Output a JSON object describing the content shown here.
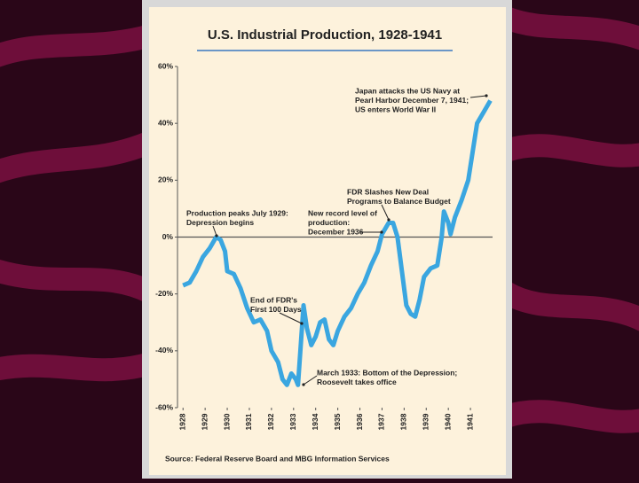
{
  "chart_data": {
    "type": "line",
    "title": "U.S. Industrial Production, 1928-1941",
    "source": "Source: Federal Reserve Board and MBG Information Services",
    "x": [
      1928.0,
      1928.3,
      1928.6,
      1928.9,
      1929.2,
      1929.5,
      1929.7,
      1929.9,
      1930.0,
      1930.3,
      1930.6,
      1930.9,
      1931.2,
      1931.5,
      1931.8,
      1932.0,
      1932.3,
      1932.5,
      1932.7,
      1932.9,
      1933.1,
      1933.2,
      1933.45,
      1933.6,
      1933.8,
      1934.0,
      1934.2,
      1934.4,
      1934.6,
      1934.8,
      1935.0,
      1935.3,
      1935.6,
      1935.9,
      1936.2,
      1936.5,
      1936.8,
      1937.0,
      1937.3,
      1937.5,
      1937.7,
      1937.9,
      1938.1,
      1938.3,
      1938.5,
      1938.7,
      1938.9,
      1939.2,
      1939.5,
      1939.7,
      1939.8,
      1940.0,
      1940.1,
      1940.3,
      1940.6,
      1940.9,
      1941.1,
      1941.3,
      1941.6,
      1941.9
    ],
    "series": [
      {
        "color": "#3aa6e0",
        "values": [
          -17,
          -16,
          -12,
          -7,
          -4,
          0,
          -1,
          -5,
          -12,
          -13,
          -18,
          -25,
          -30,
          -29,
          -33,
          -40,
          -44,
          -50,
          -52,
          -48,
          -50,
          -52,
          -24,
          -32,
          -38,
          -35,
          -30,
          -29,
          -36,
          -38,
          -33,
          -28,
          -25,
          -20,
          -16,
          -10,
          -5,
          1,
          5,
          5,
          0,
          -12,
          -24,
          -27,
          -28,
          -22,
          -14,
          -11,
          -10,
          0,
          9,
          5,
          1,
          7,
          13,
          20,
          30,
          40,
          44,
          48
        ]
      }
    ],
    "xlim": [
      1927.75,
      1942
    ],
    "xticks": [
      1928,
      1929,
      1930,
      1931,
      1932,
      1933,
      1934,
      1935,
      1936,
      1937,
      1938,
      1939,
      1940,
      1941
    ],
    "ylim": [
      -60,
      60
    ],
    "yticks": [
      {
        "value": 60,
        "label": "60%"
      },
      {
        "value": 40,
        "label": "40%"
      },
      {
        "value": 20,
        "label": "20%"
      },
      {
        "value": 0,
        "label": "0%"
      },
      {
        "value": -20,
        "label": "-20%"
      },
      {
        "value": -40,
        "label": "-40%"
      },
      {
        "value": -60,
        "label": "-60%"
      }
    ],
    "annotations": [
      {
        "lines": [
          "Production peaks July 1929:",
          "Depression begins"
        ]
      },
      {
        "lines": [
          "End of FDR's",
          "First 100 Days"
        ]
      },
      {
        "lines": [
          "March 1933: Bottom of the Depression;",
          "Roosevelt takes office"
        ]
      },
      {
        "lines": [
          "New record level of",
          "production:",
          "December 1936"
        ]
      },
      {
        "lines": [
          "FDR Slashes New Deal",
          "Programs to Balance Budget"
        ]
      },
      {
        "lines": [
          "Japan attacks the US Navy at",
          "Pearl Harbor December 7, 1941;",
          "US enters World War II"
        ]
      }
    ]
  }
}
